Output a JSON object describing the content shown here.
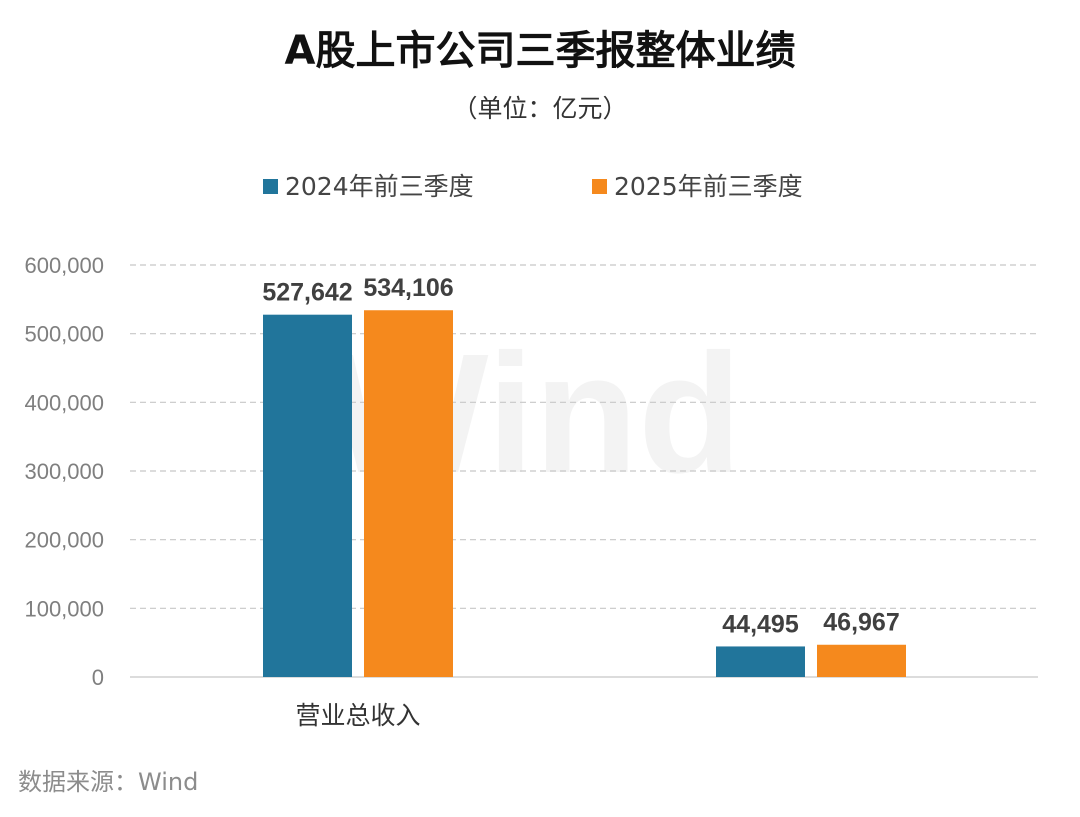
{
  "title": "A股上市公司三季报整体业绩",
  "subtitle": "（单位：亿元）",
  "source": "数据来源：Wind",
  "watermark": "Wind",
  "legend": [
    {
      "label": "2024年前三季度",
      "color": "#21759b"
    },
    {
      "label": "2025年前三季度",
      "color": "#f5891d"
    }
  ],
  "chart_data": {
    "type": "bar",
    "categories": [
      "营业总收入",
      ""
    ],
    "series": [
      {
        "name": "2024年前三季度",
        "values": [
          527642,
          44495
        ],
        "labels": [
          "527,642",
          "44,495"
        ],
        "color": "#21759b"
      },
      {
        "name": "2025年前三季度",
        "values": [
          534106,
          46967
        ],
        "labels": [
          "534,106",
          "46,967"
        ],
        "color": "#f5891d"
      }
    ],
    "ylim": [
      0,
      600000
    ],
    "yticks": [
      0,
      100000,
      200000,
      300000,
      400000,
      500000,
      600000
    ],
    "ytick_labels": [
      "0",
      "100,000",
      "200,000",
      "300,000",
      "400,000",
      "500,000",
      "600,000"
    ],
    "grid": true,
    "legend_position": "top"
  }
}
